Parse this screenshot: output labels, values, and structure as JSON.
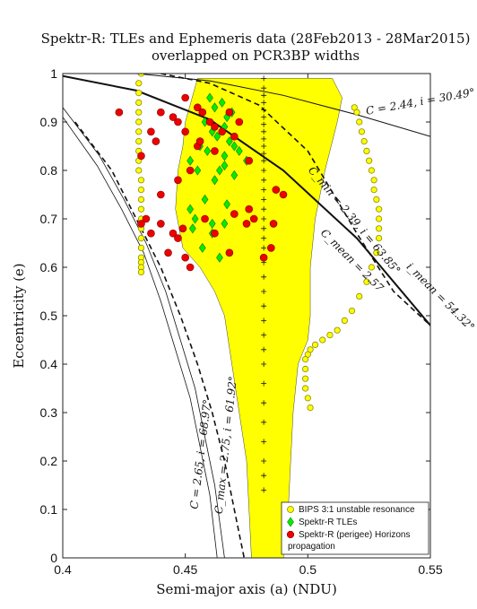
{
  "chart_data": {
    "type": "scatter",
    "title_line1": "Spektr-R: TLEs and Ephemeris data (28Feb2013 - 28Mar2015)",
    "title_line2": "overlapped on PCR3BP widths",
    "xlabel": "Semi-major axis (a) (NDU)",
    "ylabel": "Eccentricity (e)",
    "xlim": [
      0.4,
      0.55
    ],
    "ylim": [
      0,
      1
    ],
    "xticks": [
      "0.4",
      "0.45",
      "0.5",
      "0.55"
    ],
    "xtick_values": [
      0.4,
      0.45,
      0.5,
      0.55
    ],
    "yticks": [
      "0",
      "0.1",
      "0.2",
      "0.3",
      "0.4",
      "0.5",
      "0.6",
      "0.7",
      "0.8",
      "0.9",
      "1"
    ],
    "ytick_values": [
      0,
      0.1,
      0.2,
      0.3,
      0.4,
      0.5,
      0.6,
      0.7,
      0.8,
      0.9,
      1
    ],
    "grid": false,
    "legend_position": "bottom-right",
    "colors": {
      "yellow": "#ffff00",
      "green": "#00ee00",
      "red": "#ee0000"
    },
    "legend": [
      {
        "label": "BIPS 3:1 unstable resonance",
        "marker": "circle-yellow"
      },
      {
        "label": "Spektr-R TLEs",
        "marker": "diamond-green"
      },
      {
        "label": "Spektr-R (perigee) Horizons",
        "marker": "circle-red"
      },
      {
        "label": "propagation",
        "marker": "none"
      }
    ],
    "annotations": [
      {
        "text": "C = 2.44, i = 30.49°",
        "x": 0.524,
        "y": 0.915
      },
      {
        "text": "C_min = 2.39, i = 63.85°",
        "x": 0.5,
        "y": 0.8
      },
      {
        "text": "C_mean = 2.57",
        "x": 0.505,
        "y": 0.67
      },
      {
        "text": "i_mean = 54.32°",
        "x": 0.54,
        "y": 0.6
      },
      {
        "text": "C_max = 2.75, i = 61.92°",
        "x": 0.465,
        "y": 0.09
      },
      {
        "text": "C = 2.65, i = 68.97°",
        "x": 0.455,
        "y": 0.1
      }
    ],
    "unstable_region": [
      [
        0.455,
        0.99
      ],
      [
        0.51,
        0.99
      ],
      [
        0.514,
        0.95
      ],
      [
        0.512,
        0.9
      ],
      [
        0.507,
        0.8
      ],
      [
        0.503,
        0.7
      ],
      [
        0.501,
        0.6
      ],
      [
        0.501,
        0.5
      ],
      [
        0.5,
        0.45
      ],
      [
        0.496,
        0.4
      ],
      [
        0.494,
        0.3
      ],
      [
        0.493,
        0.2
      ],
      [
        0.492,
        0.1
      ],
      [
        0.49,
        0.0
      ],
      [
        0.477,
        0.0
      ],
      [
        0.476,
        0.1
      ],
      [
        0.475,
        0.2
      ],
      [
        0.472,
        0.3
      ],
      [
        0.469,
        0.4
      ],
      [
        0.466,
        0.5
      ],
      [
        0.462,
        0.55
      ],
      [
        0.456,
        0.6
      ],
      [
        0.449,
        0.64
      ],
      [
        0.446,
        0.72
      ],
      [
        0.447,
        0.8
      ],
      [
        0.449,
        0.85
      ],
      [
        0.45,
        0.9
      ]
    ],
    "line_C244": [
      [
        0.43,
        1.0
      ],
      [
        0.46,
        0.985
      ],
      [
        0.49,
        0.955
      ],
      [
        0.52,
        0.915
      ],
      [
        0.55,
        0.87
      ]
    ],
    "line_C_mean": [
      [
        0.4,
        0.995
      ],
      [
        0.43,
        0.965
      ],
      [
        0.46,
        0.905
      ],
      [
        0.49,
        0.8
      ],
      [
        0.52,
        0.66
      ],
      [
        0.55,
        0.48
      ]
    ],
    "line_C_min": [
      [
        0.44,
        1.0
      ],
      [
        0.46,
        0.98
      ],
      [
        0.48,
        0.935
      ],
      [
        0.5,
        0.84
      ],
      [
        0.52,
        0.67
      ],
      [
        0.535,
        0.55
      ],
      [
        0.55,
        0.48
      ]
    ],
    "line_C_max": [
      [
        0.405,
        0.9
      ],
      [
        0.42,
        0.8
      ],
      [
        0.43,
        0.7
      ],
      [
        0.44,
        0.6
      ],
      [
        0.448,
        0.5
      ],
      [
        0.455,
        0.4
      ],
      [
        0.461,
        0.3
      ],
      [
        0.466,
        0.2
      ],
      [
        0.47,
        0.1
      ],
      [
        0.474,
        0.0
      ]
    ],
    "line_C265_outer": [
      [
        0.4,
        0.93
      ],
      [
        0.415,
        0.83
      ],
      [
        0.425,
        0.74
      ],
      [
        0.434,
        0.65
      ],
      [
        0.442,
        0.55
      ],
      [
        0.448,
        0.45
      ],
      [
        0.454,
        0.35
      ],
      [
        0.458,
        0.25
      ],
      [
        0.462,
        0.15
      ],
      [
        0.466,
        0.0
      ]
    ],
    "line_C265_inner": [
      [
        0.4,
        0.91
      ],
      [
        0.414,
        0.81
      ],
      [
        0.424,
        0.72
      ],
      [
        0.433,
        0.63
      ],
      [
        0.44,
        0.53
      ],
      [
        0.446,
        0.43
      ],
      [
        0.452,
        0.33
      ],
      [
        0.456,
        0.23
      ],
      [
        0.46,
        0.13
      ],
      [
        0.463,
        0.0
      ]
    ],
    "plus_markers_x": 0.482,
    "plus_markers_y": [
      0.99,
      0.97,
      0.955,
      0.94,
      0.925,
      0.91,
      0.895,
      0.88,
      0.865,
      0.85,
      0.835,
      0.82,
      0.8,
      0.78,
      0.76,
      0.74,
      0.72,
      0.7,
      0.68,
      0.66,
      0.64,
      0.61,
      0.58,
      0.55,
      0.52,
      0.49,
      0.46,
      0.43,
      0.4,
      0.36,
      0.32,
      0.28,
      0.24,
      0.2,
      0.17,
      0.14
    ],
    "bips_left_x": [
      0.432,
      0.431,
      0.431,
      0.431,
      0.431,
      0.431,
      0.431,
      0.431,
      0.431,
      0.431,
      0.431,
      0.432,
      0.432,
      0.432,
      0.432,
      0.432,
      0.432,
      0.432,
      0.432,
      0.432,
      0.432,
      0.432,
      0.432
    ],
    "bips_left_y": [
      1.0,
      0.98,
      0.96,
      0.94,
      0.92,
      0.9,
      0.88,
      0.86,
      0.84,
      0.82,
      0.8,
      0.78,
      0.76,
      0.74,
      0.72,
      0.7,
      0.68,
      0.66,
      0.64,
      0.62,
      0.61,
      0.6,
      0.59
    ],
    "bips_right_x": [
      0.519,
      0.52,
      0.521,
      0.522,
      0.523,
      0.524,
      0.525,
      0.526,
      0.527,
      0.527,
      0.528,
      0.529,
      0.529,
      0.529,
      0.529,
      0.528,
      0.526,
      0.524,
      0.521,
      0.518,
      0.515,
      0.512,
      0.509,
      0.506,
      0.503,
      0.501,
      0.5,
      0.499,
      0.499,
      0.499,
      0.499,
      0.5,
      0.501
    ],
    "bips_right_y": [
      0.93,
      0.92,
      0.9,
      0.88,
      0.86,
      0.84,
      0.82,
      0.8,
      0.78,
      0.76,
      0.74,
      0.72,
      0.7,
      0.68,
      0.66,
      0.63,
      0.6,
      0.57,
      0.54,
      0.51,
      0.49,
      0.47,
      0.46,
      0.45,
      0.44,
      0.43,
      0.42,
      0.41,
      0.39,
      0.37,
      0.35,
      0.33,
      0.31
    ],
    "tle_x": [
      0.46,
      0.462,
      0.465,
      0.467,
      0.469,
      0.466,
      0.458,
      0.461,
      0.463,
      0.468,
      0.456,
      0.459,
      0.466,
      0.47,
      0.472,
      0.464,
      0.452,
      0.455,
      0.462,
      0.466,
      0.47,
      0.475,
      0.458,
      0.454,
      0.461,
      0.467,
      0.453,
      0.461,
      0.466,
      0.457,
      0.452,
      0.464
    ],
    "tle_y": [
      0.95,
      0.93,
      0.94,
      0.91,
      0.92,
      0.89,
      0.9,
      0.88,
      0.87,
      0.86,
      0.85,
      0.84,
      0.83,
      0.85,
      0.84,
      0.8,
      0.82,
      0.8,
      0.78,
      0.81,
      0.79,
      0.82,
      0.74,
      0.7,
      0.69,
      0.73,
      0.68,
      0.67,
      0.69,
      0.64,
      0.72,
      0.62
    ],
    "horizons_x": [
      0.423,
      0.432,
      0.436,
      0.438,
      0.44,
      0.44,
      0.45,
      0.455,
      0.457,
      0.46,
      0.462,
      0.465,
      0.468,
      0.47,
      0.472,
      0.476,
      0.476,
      0.487,
      0.49,
      0.455,
      0.452,
      0.447,
      0.445,
      0.449,
      0.458,
      0.462,
      0.47,
      0.475,
      0.478,
      0.482,
      0.443,
      0.436,
      0.44,
      0.432,
      0.434,
      0.447,
      0.45,
      0.452,
      0.468,
      0.485,
      0.486,
      0.445,
      0.447,
      0.45,
      0.456,
      0.462
    ],
    "horizons_y": [
      0.92,
      0.83,
      0.88,
      0.86,
      0.92,
      0.75,
      0.95,
      0.93,
      0.92,
      0.9,
      0.89,
      0.88,
      0.92,
      0.87,
      0.9,
      0.82,
      0.72,
      0.76,
      0.75,
      0.85,
      0.8,
      0.78,
      0.91,
      0.68,
      0.7,
      0.67,
      0.71,
      0.69,
      0.7,
      0.62,
      0.63,
      0.67,
      0.69,
      0.69,
      0.7,
      0.9,
      0.62,
      0.6,
      0.63,
      0.64,
      0.69,
      0.67,
      0.66,
      0.88,
      0.86,
      0.84
    ]
  }
}
